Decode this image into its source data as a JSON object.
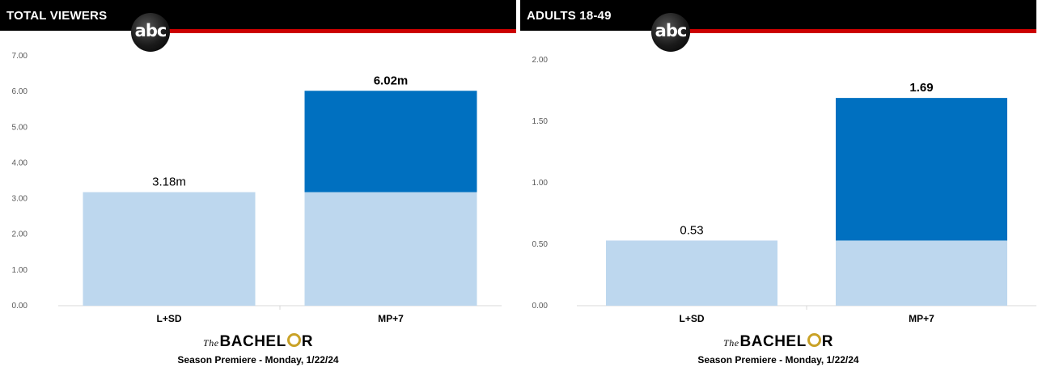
{
  "charts": [
    {
      "panel_title": "TOTAL VIEWERS",
      "network_logo": "abc",
      "show_logo": {
        "prefix": "The",
        "before_ring": "BACHEL",
        "after_ring": "R"
      },
      "subtitle": "Season Premiere - Monday, 1/22/24",
      "y_tick_labels": [
        "0.00",
        "1.00",
        "2.00",
        "3.00",
        "4.00",
        "5.00",
        "6.00",
        "7.00"
      ]
    },
    {
      "panel_title": "ADULTS 18-49",
      "network_logo": "abc",
      "show_logo": {
        "prefix": "The",
        "before_ring": "BACHEL",
        "after_ring": "R"
      },
      "subtitle": "Season Premiere - Monday, 1/22/24",
      "y_tick_labels": [
        "0.00",
        "0.50",
        "1.00",
        "1.50",
        "2.00"
      ]
    }
  ],
  "colors": {
    "base": "#bdd7ee",
    "increment": "#0070c0",
    "title_bar": "#000000",
    "accent_line": "#cc0000"
  },
  "chart_data": [
    {
      "type": "bar",
      "stacked": true,
      "title": "TOTAL VIEWERS",
      "categories": [
        "L+SD",
        "MP+7"
      ],
      "series": [
        {
          "values": [
            3.18,
            3.18
          ]
        },
        {
          "values": [
            0,
            2.84
          ]
        }
      ],
      "data_labels": [
        "3.18m",
        "6.02m"
      ],
      "ylim": [
        0,
        7
      ],
      "yticks": [
        0,
        1,
        2,
        3,
        4,
        5,
        6,
        7
      ],
      "grid": false
    },
    {
      "type": "bar",
      "stacked": true,
      "title": "ADULTS 18-49",
      "categories": [
        "L+SD",
        "MP+7"
      ],
      "series": [
        {
          "values": [
            0.53,
            0.53
          ]
        },
        {
          "values": [
            0,
            1.16
          ]
        }
      ],
      "data_labels": [
        "0.53",
        "1.69"
      ],
      "ylim": [
        0,
        2
      ],
      "yticks": [
        0,
        0.5,
        1,
        1.5,
        2
      ],
      "grid": false
    }
  ]
}
